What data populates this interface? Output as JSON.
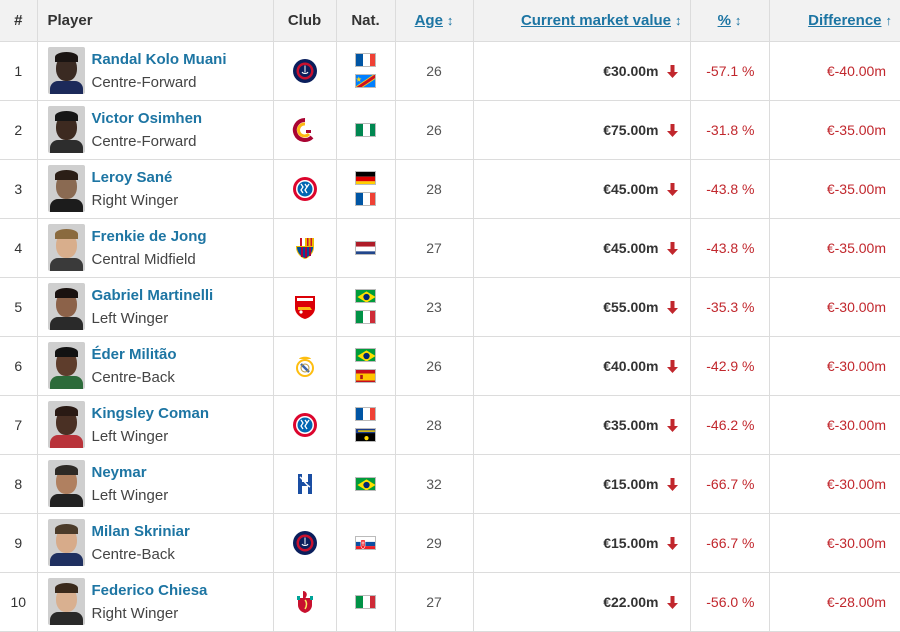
{
  "header": {
    "rank": "#",
    "player": "Player",
    "club": "Club",
    "nat": "Nat.",
    "age": "Age",
    "market_value": "Current market value",
    "pct": "%",
    "difference": "Difference"
  },
  "rows": [
    {
      "rank": "1",
      "name": "Randal Kolo Muani",
      "position": "Centre-Forward",
      "club_icon": "psg-crest-icon",
      "flags": [
        "fr",
        "cd"
      ],
      "age": "26",
      "market_value": "€30.00m",
      "pct": "-57.1 %",
      "difference": "€-40.00m"
    },
    {
      "rank": "2",
      "name": "Victor Osimhen",
      "position": "Centre-Forward",
      "club_icon": "galatasaray-crest-icon",
      "flags": [
        "ng"
      ],
      "age": "26",
      "market_value": "€75.00m",
      "pct": "-31.8 %",
      "difference": "€-35.00m"
    },
    {
      "rank": "3",
      "name": "Leroy Sané",
      "position": "Right Winger",
      "club_icon": "bayern-crest-icon",
      "flags": [
        "de",
        "fr"
      ],
      "age": "28",
      "market_value": "€45.00m",
      "pct": "-43.8 %",
      "difference": "€-35.00m"
    },
    {
      "rank": "4",
      "name": "Frenkie de Jong",
      "position": "Central Midfield",
      "club_icon": "barcelona-crest-icon",
      "flags": [
        "nl"
      ],
      "age": "27",
      "market_value": "€45.00m",
      "pct": "-43.8 %",
      "difference": "€-35.00m"
    },
    {
      "rank": "5",
      "name": "Gabriel Martinelli",
      "position": "Left Winger",
      "club_icon": "arsenal-crest-icon",
      "flags": [
        "br",
        "it"
      ],
      "age": "23",
      "market_value": "€55.00m",
      "pct": "-35.3 %",
      "difference": "€-30.00m"
    },
    {
      "rank": "6",
      "name": "Éder Militão",
      "position": "Centre-Back",
      "club_icon": "real-madrid-crest-icon",
      "flags": [
        "br",
        "es"
      ],
      "age": "26",
      "market_value": "€40.00m",
      "pct": "-42.9 %",
      "difference": "€-30.00m"
    },
    {
      "rank": "7",
      "name": "Kingsley Coman",
      "position": "Left Winger",
      "club_icon": "bayern-crest-icon",
      "flags": [
        "fr",
        "gp"
      ],
      "age": "28",
      "market_value": "€35.00m",
      "pct": "-46.2 %",
      "difference": "€-30.00m"
    },
    {
      "rank": "8",
      "name": "Neymar",
      "position": "Left Winger",
      "club_icon": "al-hilal-crest-icon",
      "flags": [
        "br"
      ],
      "age": "32",
      "market_value": "€15.00m",
      "pct": "-66.7 %",
      "difference": "€-30.00m"
    },
    {
      "rank": "9",
      "name": "Milan Skriniar",
      "position": "Centre-Back",
      "club_icon": "psg-crest-icon",
      "flags": [
        "sk"
      ],
      "age": "29",
      "market_value": "€15.00m",
      "pct": "-66.7 %",
      "difference": "€-30.00m"
    },
    {
      "rank": "10",
      "name": "Federico Chiesa",
      "position": "Right Winger",
      "club_icon": "liverpool-crest-icon",
      "flags": [
        "it"
      ],
      "age": "27",
      "market_value": "€22.00m",
      "pct": "-56.0 %",
      "difference": "€-28.00m"
    }
  ],
  "colors": {
    "link": "#1d75a3",
    "negative": "#c1272d",
    "header_bg": "#f2f2f2"
  }
}
